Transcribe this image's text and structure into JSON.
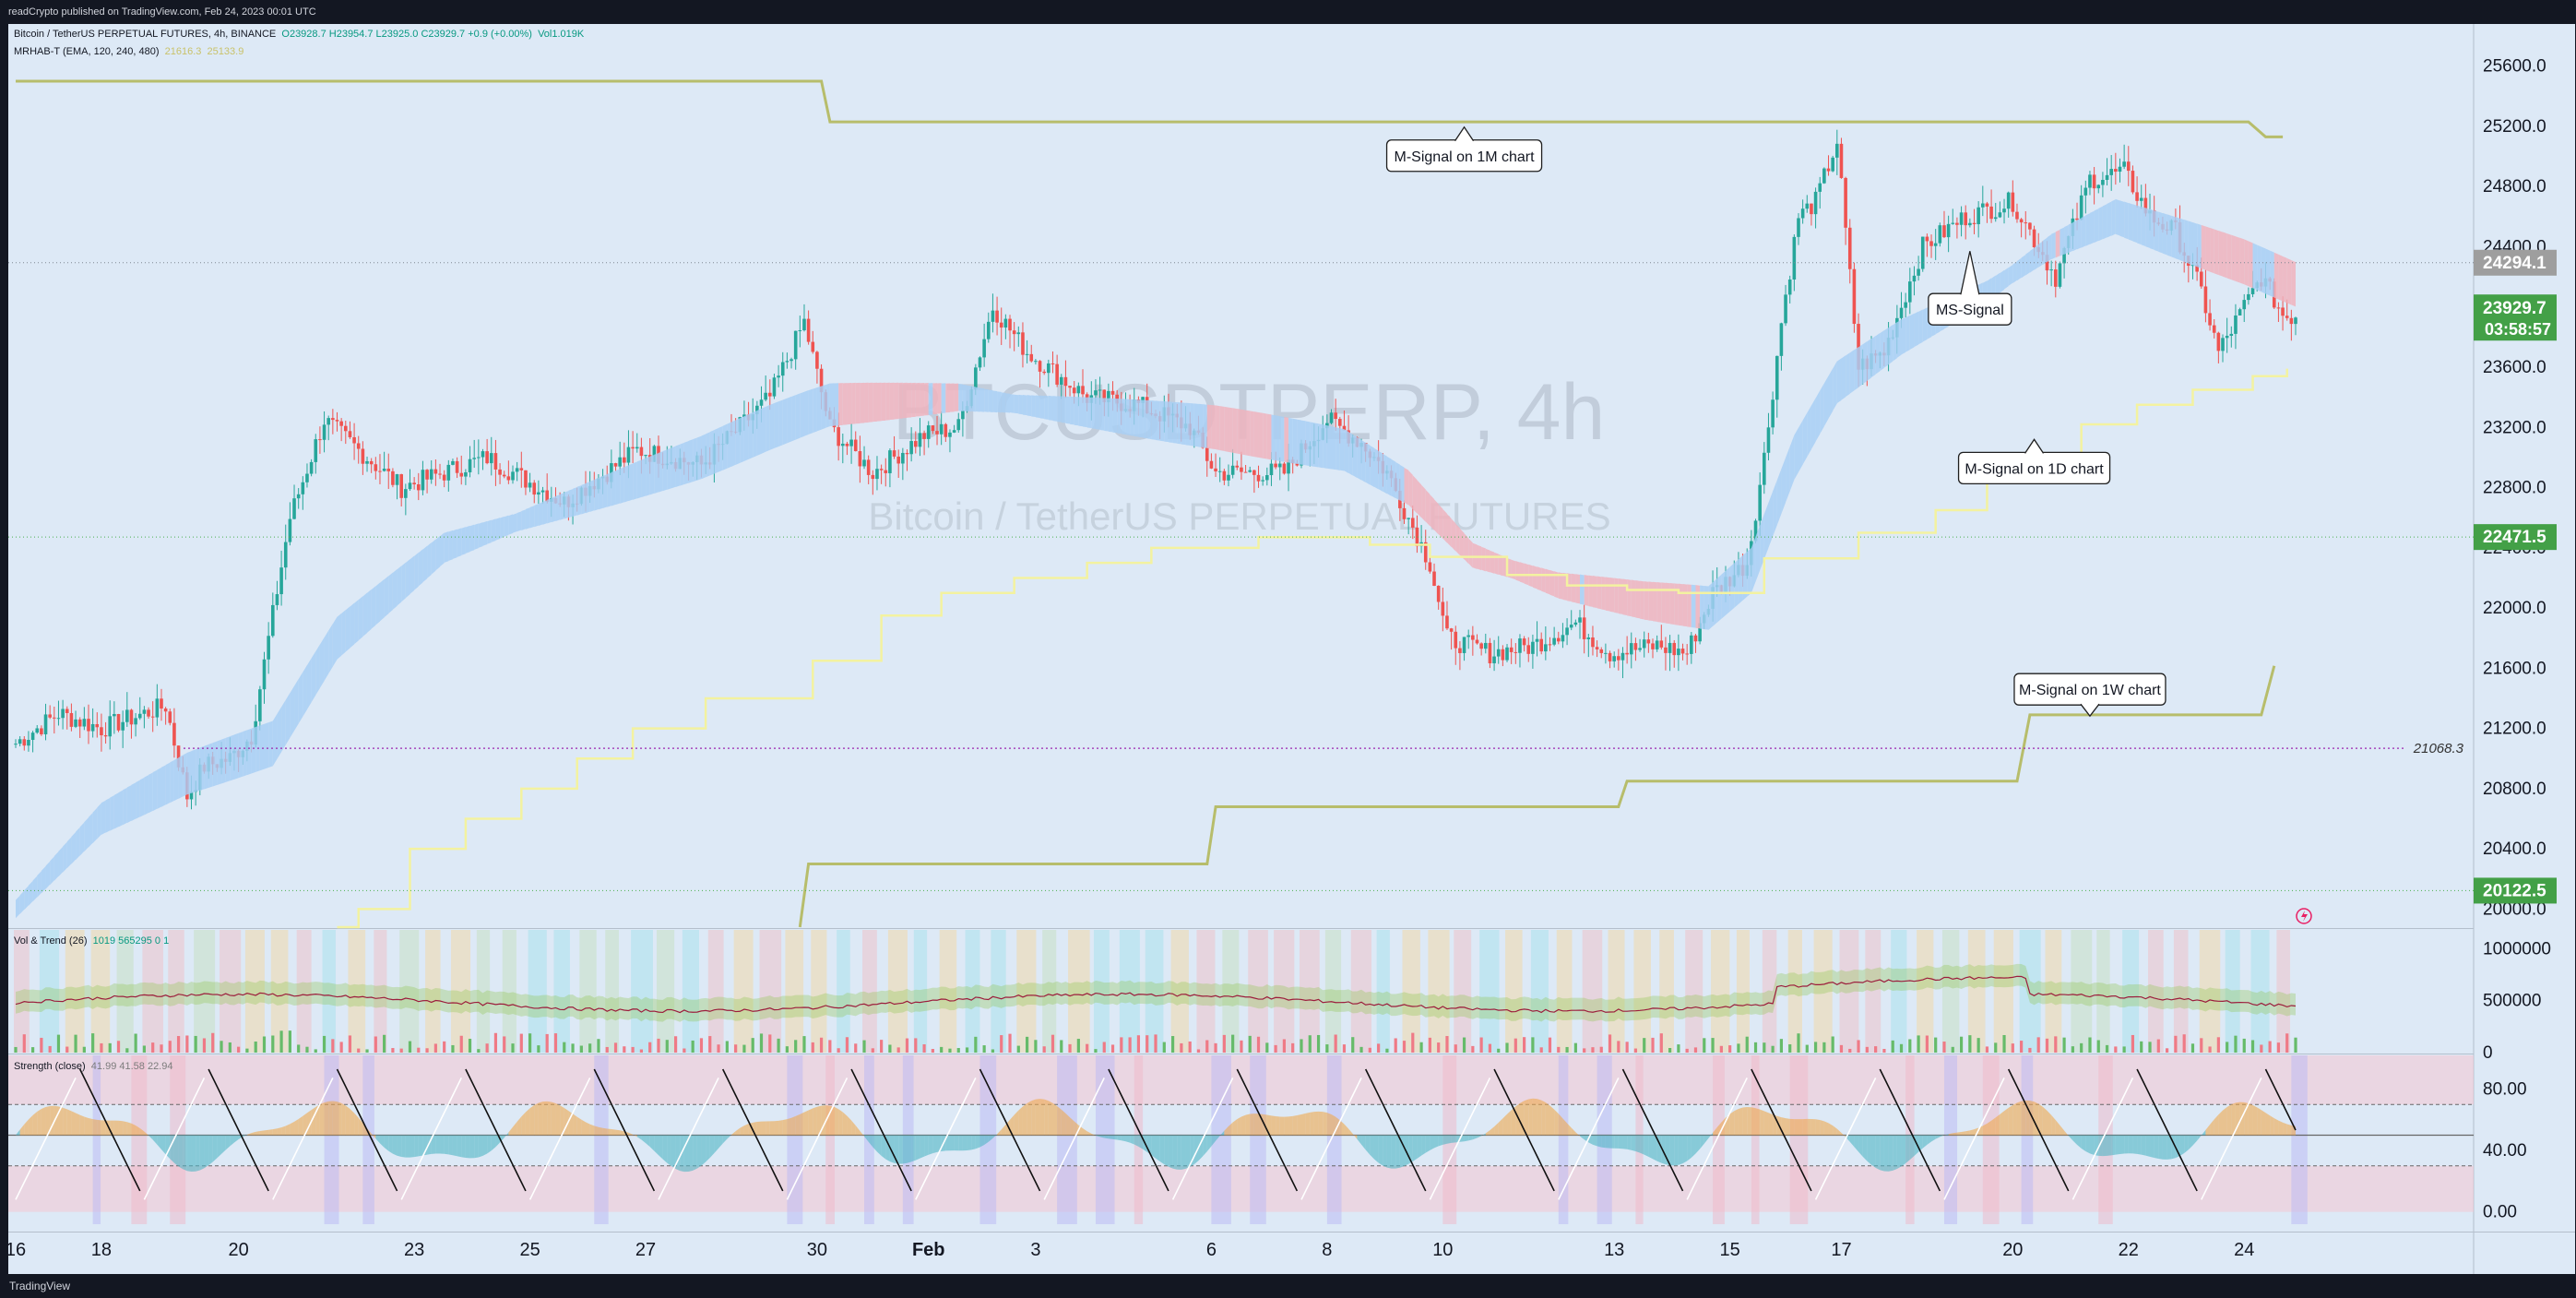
{
  "header": {
    "published": "readCrypto published on TradingView.com, Feb 24, 2023 00:01 UTC"
  },
  "legend": {
    "symbol": "Bitcoin / TetherUS PERPETUAL FUTURES, 4h, BINANCE",
    "ohlc": "O23928.7 H23954.7 L23925.0 C23929.7 +0.9 (+0.00%)",
    "volume": "Vol1.019K",
    "indicator": "MRHAB-T (EMA, 120, 240, 480)",
    "indicator_value_1": "21616.3",
    "indicator_value_2": "25133.9",
    "vol_trend": "Vol & Trend (26)",
    "vol_trend_values": "1019  565295  0  1",
    "strength": "Strength (close)",
    "strength_values": "41.99  41.58  22.94"
  },
  "watermark": {
    "ticker": "BTCUSDTPERP, 4h",
    "name": "Bitcoin / TetherUS PERPETUAL FUTURES"
  },
  "annotations": {
    "m1": "M-Signal on 1M chart",
    "ms": "MS-Signal",
    "d1": "M-Signal on 1D chart",
    "w1": "M-Signal on 1W chart",
    "level_21068": "21068.3"
  },
  "price_tags": {
    "t24294": "24294.1",
    "last_price": "23929.7",
    "countdown": "03:58:57",
    "t22471": "22471.5",
    "t20122": "20122.5"
  },
  "footer": {
    "brand": "TradingView"
  },
  "colors": {
    "background": "#dde9f6",
    "up": "#26a69a",
    "down": "#ef5350",
    "band_up": "#a8cff5",
    "band_down": "#f0b3bd",
    "signal_1m_1w": "#b7bd6b",
    "signal_1d": "#f3f2a0",
    "tag_green": "#43a047",
    "tag_grey": "#9e9e9e"
  },
  "chart_data": [
    {
      "type": "candlestick",
      "title": "BTCUSDTPERP, 4h",
      "x_ticks": [
        "16",
        "18",
        "20",
        "23",
        "25",
        "27",
        "30",
        "Feb",
        "3",
        "6",
        "8",
        "10",
        "13",
        "15",
        "17",
        "20",
        "22",
        "24"
      ],
      "y_ticks": [
        20000,
        20400,
        20800,
        21200,
        21600,
        22000,
        22400,
        22800,
        23200,
        23600,
        24000,
        24400,
        24800,
        25200,
        25600
      ],
      "ylim": [
        19880,
        25880
      ],
      "price_path": [
        [
          0,
          21100
        ],
        [
          10,
          21300
        ],
        [
          20,
          21200
        ],
        [
          35,
          21350
        ],
        [
          40,
          20750
        ],
        [
          44,
          20950
        ],
        [
          50,
          21000
        ],
        [
          55,
          21150
        ],
        [
          64,
          22600
        ],
        [
          72,
          23250
        ],
        [
          90,
          22800
        ],
        [
          110,
          23000
        ],
        [
          128,
          22700
        ],
        [
          145,
          23050
        ],
        [
          160,
          22950
        ],
        [
          176,
          23400
        ],
        [
          184,
          23900
        ],
        [
          190,
          23200
        ],
        [
          200,
          22900
        ],
        [
          212,
          23150
        ],
        [
          220,
          23200
        ],
        [
          228,
          24000
        ],
        [
          236,
          23700
        ],
        [
          250,
          23400
        ],
        [
          262,
          23350
        ],
        [
          274,
          23200
        ],
        [
          280,
          22900
        ],
        [
          296,
          22900
        ],
        [
          306,
          23250
        ],
        [
          314,
          23100
        ],
        [
          320,
          22900
        ],
        [
          330,
          22300
        ],
        [
          334,
          21800
        ],
        [
          344,
          21700
        ],
        [
          354,
          21750
        ],
        [
          364,
          21900
        ],
        [
          372,
          21700
        ],
        [
          383,
          21750
        ],
        [
          390,
          21700
        ],
        [
          396,
          22100
        ],
        [
          404,
          22300
        ],
        [
          408,
          23000
        ],
        [
          412,
          23900
        ],
        [
          416,
          24600
        ],
        [
          420,
          24700
        ],
        [
          425,
          25100
        ],
        [
          430,
          23600
        ],
        [
          436,
          23700
        ],
        [
          445,
          24400
        ],
        [
          455,
          24600
        ],
        [
          466,
          24700
        ],
        [
          476,
          24200
        ],
        [
          484,
          24850
        ],
        [
          492,
          24900
        ],
        [
          498,
          24600
        ],
        [
          504,
          24500
        ],
        [
          510,
          24100
        ],
        [
          514,
          23700
        ],
        [
          518,
          23900
        ],
        [
          524,
          24200
        ],
        [
          529,
          23950
        ],
        [
          532,
          23930
        ]
      ],
      "series": [
        {
          "name": "M-Signal on 1M chart",
          "steps": [
            [
              0,
              25500
            ],
            [
              188,
              25500
            ],
            [
              190,
              25230
            ],
            [
              521,
              25230
            ],
            [
              525,
              25130
            ],
            [
              529,
              25130
            ]
          ]
        },
        {
          "name": "M-Signal on 1W chart",
          "steps": [
            [
              183,
              19880
            ],
            [
              185,
              20300
            ],
            [
              278,
              20300
            ],
            [
              280,
              20680
            ],
            [
              374,
              20680
            ],
            [
              376,
              20850
            ],
            [
              467,
              20850
            ],
            [
              470,
              21290
            ],
            [
              524,
              21290
            ],
            [
              527,
              21616
            ]
          ]
        },
        {
          "name": "M-Signal on 1D chart",
          "steps": [
            [
              75,
              19880
            ],
            [
              80,
              20000
            ],
            [
              92,
              20400
            ],
            [
              105,
              20600
            ],
            [
              118,
              20800
            ],
            [
              131,
              21000
            ],
            [
              144,
              21200
            ],
            [
              161,
              21400
            ],
            [
              186,
              21650
            ],
            [
              202,
              21950
            ],
            [
              216,
              22100
            ],
            [
              233,
              22200
            ],
            [
              250,
              22300
            ],
            [
              265,
              22400
            ],
            [
              290,
              22470
            ],
            [
              316,
              22420
            ],
            [
              330,
              22340
            ],
            [
              348,
              22220
            ],
            [
              362,
              22150
            ],
            [
              376,
              22120
            ],
            [
              388,
              22100
            ],
            [
              398,
              22100
            ],
            [
              408,
              22330
            ],
            [
              430,
              22500
            ],
            [
              448,
              22650
            ],
            [
              460,
              22850
            ],
            [
              470,
              23000
            ],
            [
              482,
              23220
            ],
            [
              495,
              23350
            ],
            [
              508,
              23450
            ],
            [
              522,
              23540
            ],
            [
              530,
              23590
            ]
          ]
        },
        {
          "name": "MS-Signal",
          "points": [
            [
              0,
              20000
            ],
            [
              20,
              20600
            ],
            [
              40,
              20900
            ],
            [
              60,
              21100
            ],
            [
              75,
              21800
            ],
            [
              100,
              22400
            ],
            [
              130,
              22700
            ],
            [
              160,
              23000
            ],
            [
              176,
              23200
            ],
            [
              185,
              23300
            ],
            [
              190,
              23350
            ],
            [
              220,
              23400
            ],
            [
              250,
              23300
            ],
            [
              280,
              23200
            ],
            [
              310,
              23050
            ],
            [
              325,
              22800
            ],
            [
              340,
              22350
            ],
            [
              360,
              22150
            ],
            [
              380,
              22050
            ],
            [
              395,
              22000
            ],
            [
              405,
              22250
            ],
            [
              415,
              23000
            ],
            [
              425,
              23500
            ],
            [
              440,
              23800
            ],
            [
              460,
              24100
            ],
            [
              475,
              24400
            ],
            [
              490,
              24600
            ],
            [
              505,
              24450
            ],
            [
              520,
              24300
            ],
            [
              532,
              24150
            ]
          ]
        }
      ],
      "levels": [
        24294.1,
        22471.5,
        21068.3,
        20122.5
      ],
      "last_price": 23929.7
    },
    {
      "type": "area",
      "title": "Vol & Trend (26)",
      "y_ticks": [
        0,
        500000,
        1000000
      ],
      "ylim": [
        0,
        1180000
      ]
    },
    {
      "type": "line",
      "title": "Strength (close)",
      "y_ticks": [
        0,
        40,
        80
      ],
      "ylim": [
        -8,
        102
      ],
      "levels": [
        30,
        50,
        70
      ]
    }
  ]
}
